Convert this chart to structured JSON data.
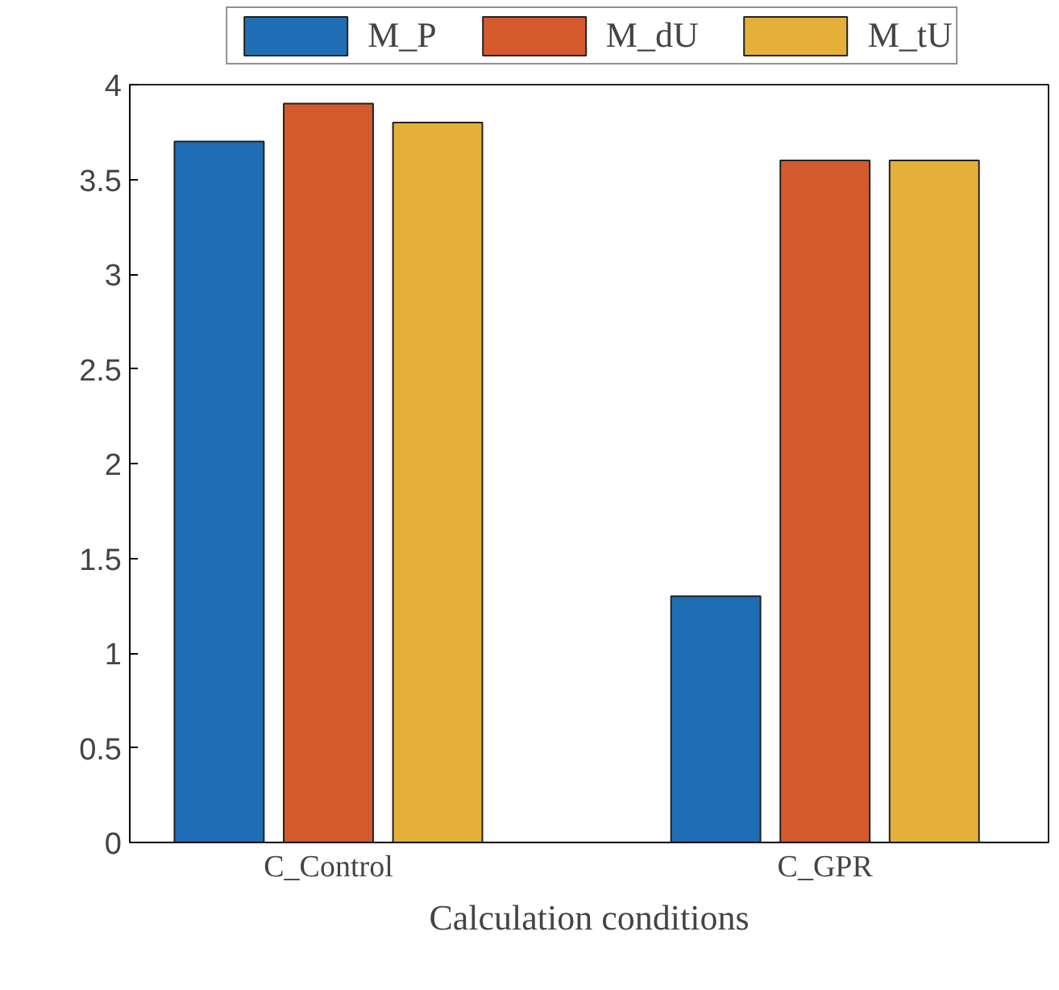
{
  "chart_data": {
    "type": "bar",
    "xlabel": "Calculation conditions",
    "categories": [
      "C_Control",
      "C_GPR"
    ],
    "series": [
      {
        "name": "M_P",
        "color": "#1f6eb5",
        "values": [
          3.7,
          1.3
        ]
      },
      {
        "name": "M_dU",
        "color": "#d45a2e",
        "values": [
          3.9,
          3.6
        ]
      },
      {
        "name": "M_tU",
        "color": "#e5b03a",
        "values": [
          3.8,
          3.6
        ]
      }
    ],
    "ylim": [
      0,
      4
    ],
    "yticks": [
      0,
      0.5,
      1,
      1.5,
      2,
      2.5,
      3,
      3.5,
      4
    ],
    "grid": false,
    "legend": "top"
  }
}
